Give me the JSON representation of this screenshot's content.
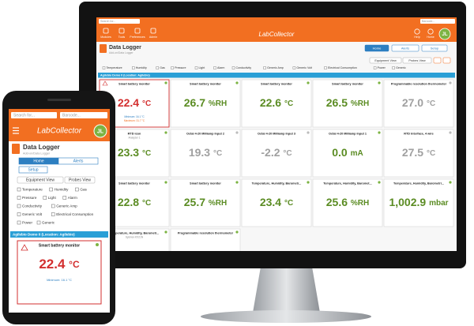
{
  "monitor": {
    "header": {
      "search": "Search for...",
      "barcode": "Barcode...",
      "menu": [
        "Modules",
        "Tools",
        "Preferences",
        "Admin"
      ],
      "logo": "LabCollector",
      "right": [
        "Help",
        "Home"
      ],
      "avatar": "JL"
    },
    "page": {
      "title": "Data Logger",
      "subtitle": "Add-on/Data Logger"
    },
    "tabs": [
      "Home",
      "Alerts",
      "Setup"
    ],
    "views": [
      "Equipment View",
      "Probes View"
    ],
    "filters": [
      "Temperature",
      "Humidity",
      "Gas",
      "Pressure",
      "Light",
      "Alarm",
      "Conductivity",
      "Generic Amp",
      "Generic Volt",
      "Electrical Consumption",
      "Power",
      "Generic"
    ],
    "location": "Agilebio Demo 0 (Location: Agilebio)",
    "tiles": [
      {
        "name": "Smart battery monitor",
        "reading": "22.4",
        "unit": "°C",
        "color": "#d32f2f",
        "alarm": true,
        "minimum": "Minimum: 16.1 °C",
        "maximum": "Maximum: 31.7 °C"
      },
      {
        "name": "Smart battery monitor",
        "reading": "26.7",
        "unit": "%RH",
        "color": "#5b8c23"
      },
      {
        "name": "Smart battery monitor",
        "reading": "22.6",
        "unit": "°C",
        "color": "#5b8c23"
      },
      {
        "name": "Smart battery monitor",
        "reading": "26.5",
        "unit": "%RH",
        "color": "#5b8c23"
      },
      {
        "name": "Programmable resolution thermometer",
        "reading": "27.0",
        "unit": "°C",
        "color": "#a0a0a0"
      },
      {
        "name": "RTD icon",
        "subtitle": "Analyzer 1",
        "reading": "23.3",
        "unit": "°C",
        "color": "#5b8c23"
      },
      {
        "name": "Octal 4-20 Milliamp Input 2",
        "reading": "19.3",
        "unit": "°C",
        "color": "#a0a0a0"
      },
      {
        "name": "Octal 4-20 Milliamp Input 3",
        "reading": "-2.2",
        "unit": "°C",
        "color": "#a0a0a0"
      },
      {
        "name": "Octal 4-20 Milliamp Input 1",
        "reading": "0.0",
        "unit": "mA",
        "color": "#5b8c23"
      },
      {
        "name": "RTD Interface, 4 wire",
        "reading": "27.5",
        "unit": "°C",
        "color": "#a0a0a0"
      },
      {
        "name": "Smart battery monitor",
        "reading": "22.8",
        "unit": "°C",
        "color": "#5b8c23"
      },
      {
        "name": "Smart battery monitor",
        "reading": "25.7",
        "unit": "%RH",
        "color": "#5b8c23"
      },
      {
        "name": "Temperature, Humidity, Barometr...",
        "reading": "23.4",
        "unit": "°C",
        "color": "#5b8c23"
      },
      {
        "name": "Temperature, Humidity, Baromet...",
        "reading": "25.6",
        "unit": "%RH",
        "color": "#5b8c23"
      },
      {
        "name": "Temperature, Humidity, Barometri...",
        "reading": "1,002.9",
        "unit": "mbar",
        "color": "#5b8c23"
      },
      {
        "name": "Temperature, Humidity, Barometr...",
        "subtitle": "Sysmex KX21N"
      },
      {
        "name": "Programmable resolution thermometer"
      }
    ]
  },
  "phone": {
    "header": {
      "search": "Search for...",
      "barcode": "Barcode...",
      "logo": "LabCollector",
      "avatar": "JL"
    },
    "page": {
      "title": "Data Logger",
      "subtitle": "Add-on/Data Logger"
    },
    "tabs": [
      "Home",
      "Alerts",
      "Setup"
    ],
    "views": [
      "Equipment View",
      "Probes View"
    ],
    "filters": [
      [
        "Temperature",
        "Humidity",
        "Gas"
      ],
      [
        "Pressure",
        "Light",
        "Alarm"
      ],
      [
        "Conductivity",
        "Generic Amp"
      ],
      [
        "Generic Volt",
        "Electrical Consumption"
      ],
      [
        "Power",
        "Generic"
      ]
    ],
    "location": "Agilebio Demo 0 (Location: Agilebio)",
    "tile": {
      "name": "Smart battery monitor",
      "reading": "22.4",
      "unit": "°C",
      "color": "#d32f2f",
      "minimum": "Minimum: 16.1 °C"
    }
  }
}
